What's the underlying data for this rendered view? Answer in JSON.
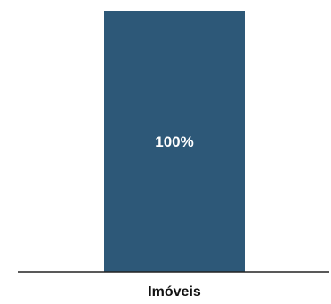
{
  "chart_data": {
    "type": "bar",
    "categories": [
      "Imóveis"
    ],
    "values": [
      100
    ],
    "data_labels": [
      "100%"
    ],
    "ylim": [
      0,
      100
    ],
    "grid": false,
    "legend": "none",
    "colors": {
      "bar": "#2d5878",
      "axis": "#222222",
      "bar_label": "#ffffff",
      "tick_label": "#111111"
    }
  }
}
